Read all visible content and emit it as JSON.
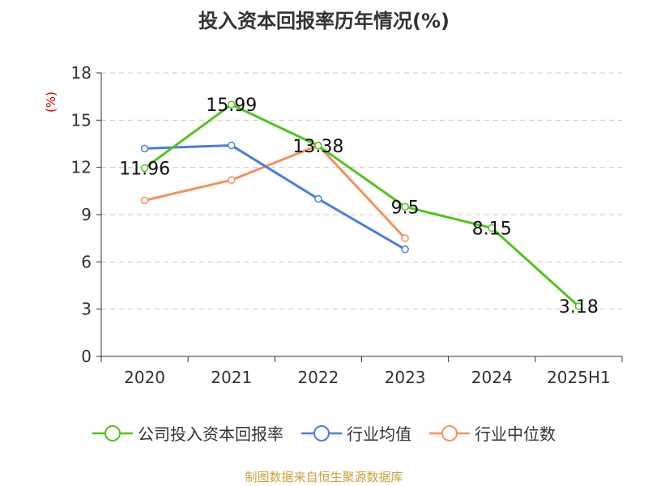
{
  "chart_data": {
    "type": "line",
    "title": "投入资本回报率历年情况(%)",
    "ylabel": "(%)",
    "xlabel": "",
    "categories": [
      "2020",
      "2021",
      "2022",
      "2023",
      "2024",
      "2025H1"
    ],
    "ylim": [
      0,
      18
    ],
    "yticks": [
      0,
      3,
      6,
      9,
      12,
      15,
      18
    ],
    "grid": true,
    "legend_position": "bottom",
    "series": [
      {
        "name": "公司投入资本回报率",
        "color": "#52c41a",
        "values": [
          11.96,
          15.99,
          13.38,
          9.5,
          8.15,
          3.18
        ],
        "labels": [
          "11.96",
          "15.99",
          "13.38",
          "9.5",
          "8.15",
          "3.18"
        ],
        "show_labels": true
      },
      {
        "name": "行业均值",
        "color": "#4a7fdb",
        "values": [
          13.2,
          13.4,
          10.0,
          6.8,
          null,
          null
        ],
        "show_labels": false
      },
      {
        "name": "行业中位数",
        "color": "#f5905e",
        "values": [
          9.9,
          11.2,
          13.4,
          7.5,
          null,
          null
        ],
        "show_labels": false
      }
    ]
  },
  "footer": {
    "source": "制图数据来自恒生聚源数据库"
  }
}
